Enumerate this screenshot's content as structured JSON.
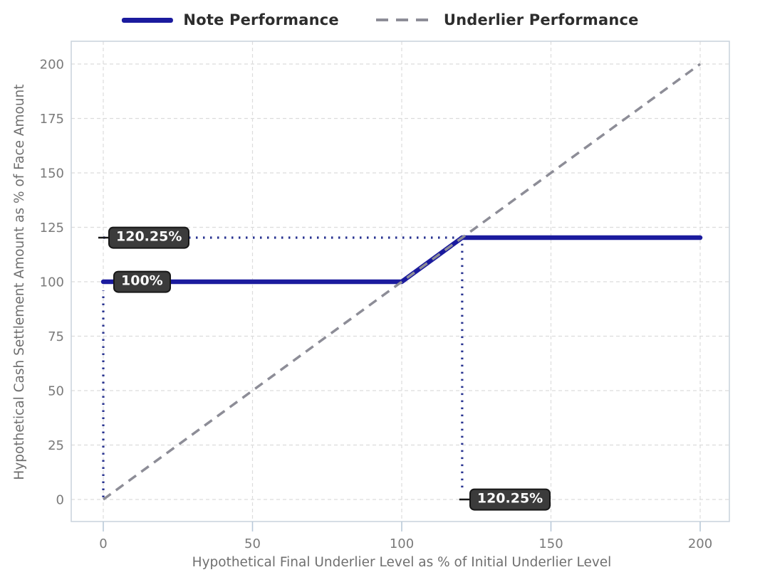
{
  "page": {
    "background": "#ffffff"
  },
  "colors": {
    "note": "#1b1b9e",
    "underlier": "#8d8d97",
    "guide": "#283390",
    "grid": "#dcdcdc",
    "frame": "#c9d2dc",
    "tick": "#b9c9d9",
    "tick_label": "#7a7a7a",
    "axis_label": "#6f6f6f",
    "legend_text": "#2d2d2d",
    "annotation_bg": "#3b3b3b",
    "annotation_border": "#171717",
    "annotation_text": "#fafafa"
  },
  "legend": {
    "note_label": "Note Performance",
    "underlier_label": "Underlier Performance"
  },
  "chart_data": {
    "type": "line",
    "title": "",
    "xlabel": "Hypothetical Final Underlier Level as % of Initial Underlier Level",
    "ylabel": "Hypothetical Cash Settlement Amount as % of Face Amount",
    "xlim": [
      0,
      200
    ],
    "ylim": [
      0,
      200
    ],
    "xticks": [
      0,
      50,
      100,
      150,
      200
    ],
    "yticks": [
      0,
      25,
      50,
      75,
      100,
      125,
      150,
      175,
      200
    ],
    "grid": true,
    "legend_position": "top-center",
    "series": [
      {
        "name": "Note Performance",
        "line_style": "solid",
        "color_key": "note",
        "points": [
          [
            0,
            100
          ],
          [
            100,
            100
          ],
          [
            120.25,
            120.25
          ],
          [
            200,
            120.25
          ]
        ]
      },
      {
        "name": "Underlier Performance",
        "line_style": "dashed",
        "color_key": "underlier",
        "points": [
          [
            0,
            0
          ],
          [
            200,
            200
          ]
        ]
      }
    ],
    "guide_lines": [
      {
        "type": "v",
        "x": 0,
        "y1": 1,
        "y2": 96
      },
      {
        "type": "h",
        "y": 120.25,
        "x1": 0,
        "x2": 120.25
      },
      {
        "type": "v",
        "x": 120.25,
        "y1": 5.5,
        "y2": 120.25
      }
    ],
    "annotations": [
      {
        "text": "120.25%",
        "x": 0,
        "y": 120.25,
        "dx": 7,
        "leader": true
      },
      {
        "text": "100%",
        "x": 0,
        "y": 100,
        "dx": 14,
        "leader": false
      },
      {
        "text": "120.25%",
        "x": 120.25,
        "y": 0,
        "dx": 10,
        "leader": true
      }
    ]
  }
}
